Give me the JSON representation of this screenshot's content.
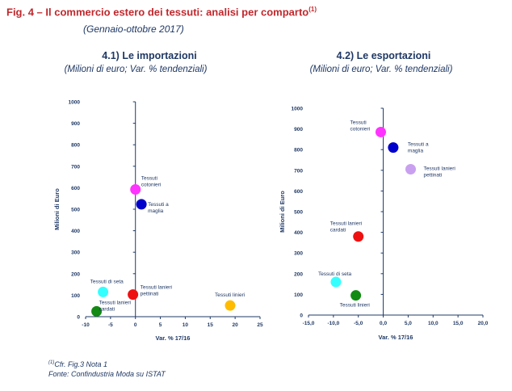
{
  "figure": {
    "title": "Fig. 4 – Il commercio estero dei tessuti: analisi per comparto",
    "title_note": "(1)",
    "subtitle": "(Gennaio-ottobre 2017)"
  },
  "chart_data": [
    {
      "type": "scatter",
      "title": "4.1) Le importazioni",
      "subtitle": "(Milioni di euro; Var. % tendenziali)",
      "xlabel": "Var. % 17/16",
      "ylabel": "Milioni di Euro",
      "xlim": [
        -10,
        25
      ],
      "ylim": [
        0,
        1000
      ],
      "xticks": [
        "-10",
        "-5",
        "0",
        "5",
        "10",
        "15",
        "20",
        "25"
      ],
      "yticks": [
        "0",
        "100",
        "200",
        "300",
        "400",
        "500",
        "600",
        "700",
        "800",
        "900",
        "1000"
      ],
      "grid": false,
      "points": [
        {
          "label": [
            "Tessuti",
            "cotonieri"
          ],
          "x": 0.0,
          "y": 592,
          "color": "#ff33ff"
        },
        {
          "label": [
            "Tessuti a",
            "maglia"
          ],
          "x": 1.2,
          "y": 523,
          "color": "#0000cc"
        },
        {
          "label": [
            "Tessuti di seta"
          ],
          "x": -6.5,
          "y": 115,
          "color": "#33ffff"
        },
        {
          "label": [
            "Tessuti lanieri",
            "pettinati"
          ],
          "x": -0.5,
          "y": 103,
          "color": "#ee1111"
        },
        {
          "label": [
            "Tessuti lanieri",
            "cardati"
          ],
          "x": -7.8,
          "y": 25,
          "color": "#138a13"
        },
        {
          "label": [
            "Tessuti linieri"
          ],
          "x": 19.0,
          "y": 52,
          "color": "#ffbb00"
        }
      ]
    },
    {
      "type": "scatter",
      "title": "4.2) Le esportazioni",
      "subtitle": "(Milioni di euro; Var. % tendenziali)",
      "xlabel": "Var. % 17/16",
      "ylabel": "Milioni di Euro",
      "xlim": [
        -15,
        20
      ],
      "ylim": [
        0,
        1000
      ],
      "xticks": [
        "-15,0",
        "-10,0",
        "-5,0",
        "0,0",
        "5,0",
        "10,0",
        "15,0",
        "20,0"
      ],
      "yticks": [
        "0",
        "100",
        "200",
        "300",
        "400",
        "500",
        "600",
        "700",
        "800",
        "900",
        "1000"
      ],
      "grid": false,
      "points": [
        {
          "label": [
            "Tessuti",
            "cotonieri"
          ],
          "x": -0.5,
          "y": 885,
          "color": "#ff33ff"
        },
        {
          "label": [
            "Tessuti a",
            "maglia"
          ],
          "x": 2.0,
          "y": 810,
          "color": "#0000cc"
        },
        {
          "label": [
            "Tessuti lanieri",
            "pettinati"
          ],
          "x": 5.5,
          "y": 705,
          "color": "#c9a0f0"
        },
        {
          "label": [
            "Tessuti lanieri",
            "cardati"
          ],
          "x": -5.0,
          "y": 380,
          "color": "#ee1111"
        },
        {
          "label": [
            "Tessuti di seta"
          ],
          "x": -9.5,
          "y": 160,
          "color": "#33ffff"
        },
        {
          "label": [
            "Tessuti linieri"
          ],
          "x": -5.5,
          "y": 95,
          "color": "#138a13"
        }
      ]
    }
  ],
  "footnotes": {
    "note_marker": "(1)",
    "note": "Cfr. Fig.3 Nota 1",
    "source": "Fonte: Confindustria Moda  su ISTAT"
  }
}
